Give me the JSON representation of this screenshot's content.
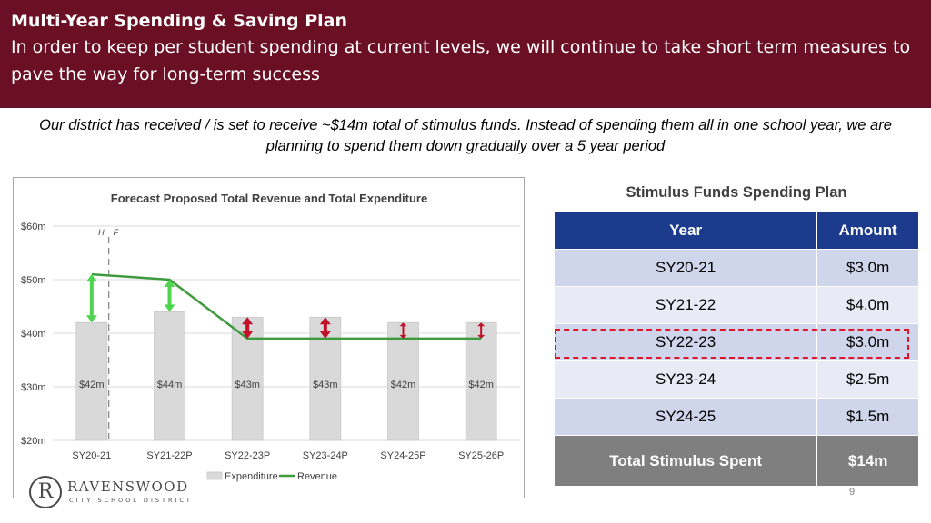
{
  "header": {
    "title": "Multi-Year Spending & Saving Plan",
    "subtitle": "In order to keep per student spending at current levels, we will continue to take short term measures to pave the way for long-term success"
  },
  "intro": "Our district has received / is set to receive ~$14m total of stimulus funds. Instead of spending them all in one school year, we are planning to spend them down gradually over a 5 year period",
  "chart_data": {
    "type": "bar",
    "title": "Forecast Proposed Total Revenue and Total Expenditure",
    "categories": [
      "SY20-21",
      "SY21-22P",
      "SY22-23P",
      "SY23-24P",
      "SY24-25P",
      "SY25-26P"
    ],
    "series": [
      {
        "name": "Expenditure",
        "type": "bar",
        "values": [
          42,
          44,
          43,
          43,
          42,
          42
        ],
        "labels": [
          "$42m",
          "$44m",
          "$43m",
          "$43m",
          "$42m",
          "$42m"
        ],
        "color": "#d9d9d9"
      },
      {
        "name": "Revenue",
        "type": "line",
        "values": [
          51,
          50,
          39,
          39,
          39,
          39
        ],
        "color": "#3e9b3e"
      }
    ],
    "yticks": [
      20,
      30,
      40,
      50,
      60
    ],
    "ytick_labels": [
      "$20m",
      "$30m",
      "$40m",
      "$50m",
      "$60m"
    ],
    "ylim": [
      20,
      60
    ],
    "divider_labels": {
      "left": "H",
      "right": "F"
    },
    "legend": {
      "position": "bottom"
    },
    "gap_arrows": [
      {
        "category": "SY20-21",
        "color": "#4fd44f"
      },
      {
        "category": "SY21-22P",
        "color": "#4fd44f"
      },
      {
        "category": "SY22-23P",
        "color": "#c0102a"
      },
      {
        "category": "SY23-24P",
        "color": "#c0102a"
      },
      {
        "category": "SY24-25P",
        "color": "#c0102a"
      },
      {
        "category": "SY25-26P",
        "color": "#c0102a"
      }
    ]
  },
  "table": {
    "title": "Stimulus Funds Spending Plan",
    "headers": [
      "Year",
      "Amount"
    ],
    "rows": [
      {
        "year": "SY20-21",
        "amount": "$3.0m"
      },
      {
        "year": "SY21-22",
        "amount": "$4.0m"
      },
      {
        "year": "SY22-23",
        "amount": "$3.0m"
      },
      {
        "year": "SY23-24",
        "amount": "$2.5m"
      },
      {
        "year": "SY24-25",
        "amount": "$1.5m"
      }
    ],
    "total": {
      "label": "Total Stimulus Spent",
      "amount": "$14m"
    }
  },
  "logo": {
    "name": "RAVENSWOOD",
    "sub": "CITY SCHOOL DISTRICT",
    "initial": "R"
  },
  "page_number": "9",
  "colors": {
    "header_bg": "#6b0f24",
    "table_header": "#1c3b8c",
    "highlight": "#e0152a"
  }
}
